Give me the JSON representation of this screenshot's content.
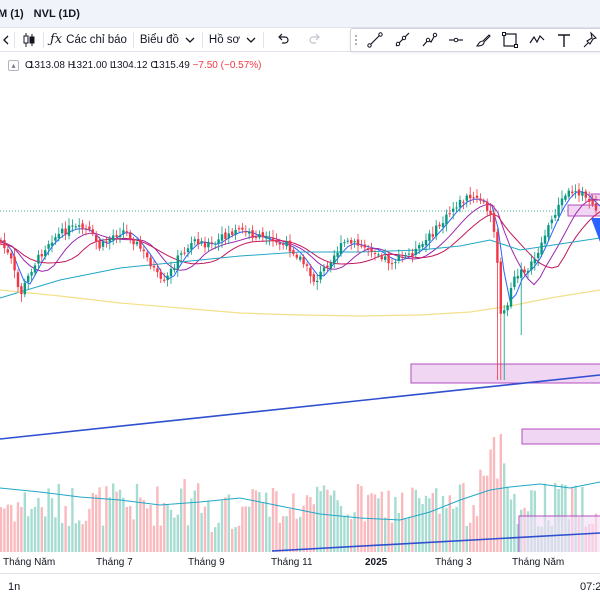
{
  "tabs": [
    "M (1)",
    "NVL (1D)"
  ],
  "toolbar": {
    "indicators_label": "Các chỉ báo",
    "chart_type_label": "Biểu đồ",
    "profile_label": "Hồ sơ"
  },
  "legend": {
    "open_label": "O",
    "open": "1313.08",
    "high_label": "H",
    "high": "1321.00",
    "low_label": "L",
    "low": "1304.12",
    "close_label": "C",
    "close": "1315.49",
    "change": "−7.50 (−0.57%)"
  },
  "x_axis": {
    "labels": [
      "Tháng Năm",
      "Tháng 7",
      "Tháng 9",
      "Tháng 11",
      "2025",
      "Tháng 3",
      "Tháng Năm"
    ]
  },
  "bottom": {
    "timeframe": "1n",
    "clock": "07:2"
  },
  "colors": {
    "up": "#089981",
    "down": "#f23645",
    "volume_up": "#a7dcd2",
    "volume_down": "#f9b9bd",
    "trend": "#2e4fd0",
    "zone_fill": "#f0d6f2",
    "zone_stroke": "#b24fc0",
    "ma_short": "#2962ff",
    "ma_mid": "#9c27b0",
    "ma_long": "#22a7c7",
    "ma_200": "#f2e08a",
    "ma_red": "#c2185b"
  },
  "drawing_tools": [
    "trend-line-icon",
    "ray-icon",
    "path-icon",
    "horizontal-line-icon",
    "brush-icon",
    "rectangle-icon",
    "wave-icon",
    "text-icon",
    "pin-icon"
  ]
}
